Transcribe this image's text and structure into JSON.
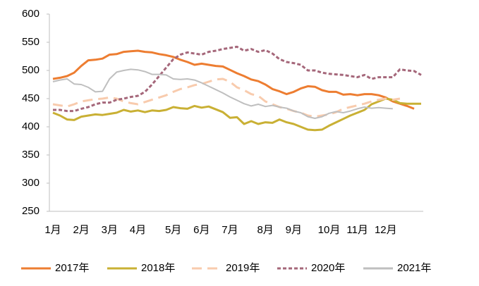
{
  "chart_data": {
    "type": "line",
    "categories": [
      "1月",
      null,
      null,
      null,
      "2月",
      null,
      null,
      null,
      "3月",
      null,
      null,
      null,
      "4月",
      null,
      null,
      null,
      null,
      "5月",
      null,
      null,
      null,
      "6月",
      null,
      null,
      null,
      "7月",
      null,
      null,
      null,
      null,
      "8月",
      null,
      null,
      null,
      "9月",
      null,
      null,
      null,
      null,
      "10月",
      null,
      null,
      null,
      "11月",
      null,
      null,
      null,
      "12月",
      null,
      null,
      null,
      null,
      null
    ],
    "ylim": [
      250,
      600
    ],
    "yticks": [
      250,
      300,
      350,
      400,
      450,
      500,
      550,
      600
    ],
    "grid": false,
    "legend": "bottom",
    "series": [
      {
        "name": "2017年",
        "color": "#ED7D31",
        "dash": "solid",
        "values": [
          485,
          487,
          490,
          496,
          508,
          518,
          519,
          521,
          528,
          529,
          533,
          534,
          535,
          533,
          532,
          529,
          527,
          524,
          519,
          515,
          510,
          512,
          510,
          508,
          507,
          501,
          495,
          490,
          484,
          481,
          475,
          467,
          463,
          458,
          462,
          468,
          472,
          471,
          465,
          462,
          462,
          457,
          458,
          456,
          458,
          458,
          456,
          452,
          445,
          441,
          437,
          432,
          null
        ]
      },
      {
        "name": "2018年",
        "color": "#C9B034",
        "dash": "solid",
        "values": [
          425,
          420,
          413,
          412,
          418,
          420,
          422,
          421,
          423,
          425,
          430,
          427,
          429,
          426,
          429,
          428,
          430,
          435,
          433,
          432,
          437,
          434,
          436,
          431,
          426,
          416,
          417,
          405,
          410,
          405,
          408,
          407,
          413,
          408,
          405,
          400,
          395,
          394,
          395,
          402,
          408,
          414,
          420,
          425,
          430,
          440,
          445,
          450,
          448,
          442,
          441,
          441,
          441
        ]
      },
      {
        "name": "2019年",
        "color": "#F8CBAD",
        "dash": "dashed",
        "values": [
          440,
          438,
          436,
          440,
          445,
          447,
          449,
          450,
          452,
          450,
          445,
          442,
          440,
          444,
          448,
          452,
          456,
          462,
          467,
          470,
          474,
          476,
          480,
          484,
          485,
          480,
          470,
          465,
          458,
          455,
          445,
          440,
          435,
          432,
          428,
          425,
          420,
          418,
          420,
          422,
          426,
          432,
          435,
          438,
          441,
          445,
          448,
          450,
          448,
          450,
          null,
          null,
          null
        ]
      },
      {
        "name": "2020年",
        "color": "#A5677A",
        "dash": "dotted",
        "values": [
          430,
          430,
          428,
          428,
          432,
          435,
          440,
          443,
          443,
          448,
          450,
          453,
          455,
          462,
          475,
          490,
          505,
          520,
          528,
          532,
          530,
          528,
          533,
          535,
          538,
          540,
          542,
          535,
          538,
          533,
          536,
          530,
          520,
          515,
          513,
          510,
          500,
          500,
          496,
          494,
          493,
          492,
          490,
          488,
          492,
          485,
          488,
          488,
          488,
          502,
          500,
          499,
          492
        ]
      },
      {
        "name": "2021年",
        "color": "#BFBFBF",
        "dash": "solid",
        "values": [
          480,
          483,
          485,
          476,
          475,
          470,
          462,
          463,
          485,
          497,
          500,
          502,
          501,
          498,
          493,
          493,
          492,
          485,
          484,
          485,
          483,
          478,
          472,
          466,
          460,
          453,
          447,
          441,
          437,
          440,
          436,
          438,
          435,
          433,
          428,
          425,
          418,
          415,
          418,
          424,
          427,
          425,
          428,
          432,
          435,
          433,
          434,
          433,
          432,
          null,
          null,
          null,
          null
        ]
      }
    ]
  }
}
